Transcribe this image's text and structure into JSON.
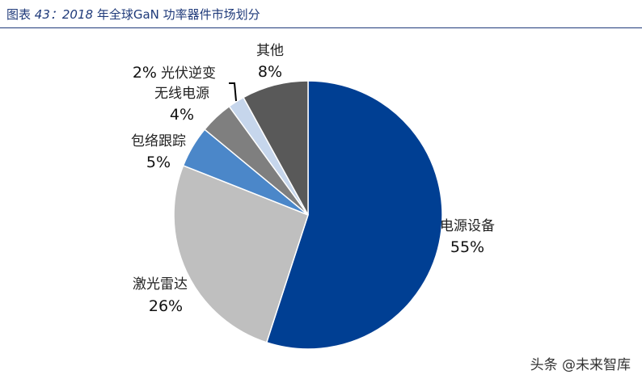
{
  "title": {
    "prefix": "图表",
    "number": "43：2018",
    "rest": "年全球GaN 功率器件市场划分"
  },
  "watermark": "头条 @未来智库",
  "chart_data": {
    "type": "pie",
    "title": "2018 年全球GaN 功率器件市场划分",
    "slices": [
      {
        "label": "电源设备",
        "value": 55,
        "pct_label": "55%",
        "color": "#003f93"
      },
      {
        "label": "激光雷达",
        "value": 26,
        "pct_label": "26%",
        "color": "#bfbfbf"
      },
      {
        "label": "包络跟踪",
        "value": 5,
        "pct_label": "5%",
        "color": "#4b87c9"
      },
      {
        "label": "无线电源",
        "value": 4,
        "pct_label": "4%",
        "color": "#7f7f7f"
      },
      {
        "label": "光伏逆变",
        "value": 2,
        "pct_label": "2%",
        "color": "#c6d6ec"
      },
      {
        "label": "其他",
        "value": 8,
        "pct_label": "8%",
        "color": "#595959"
      }
    ],
    "start": "12 o'clock",
    "direction": "clockwise"
  }
}
